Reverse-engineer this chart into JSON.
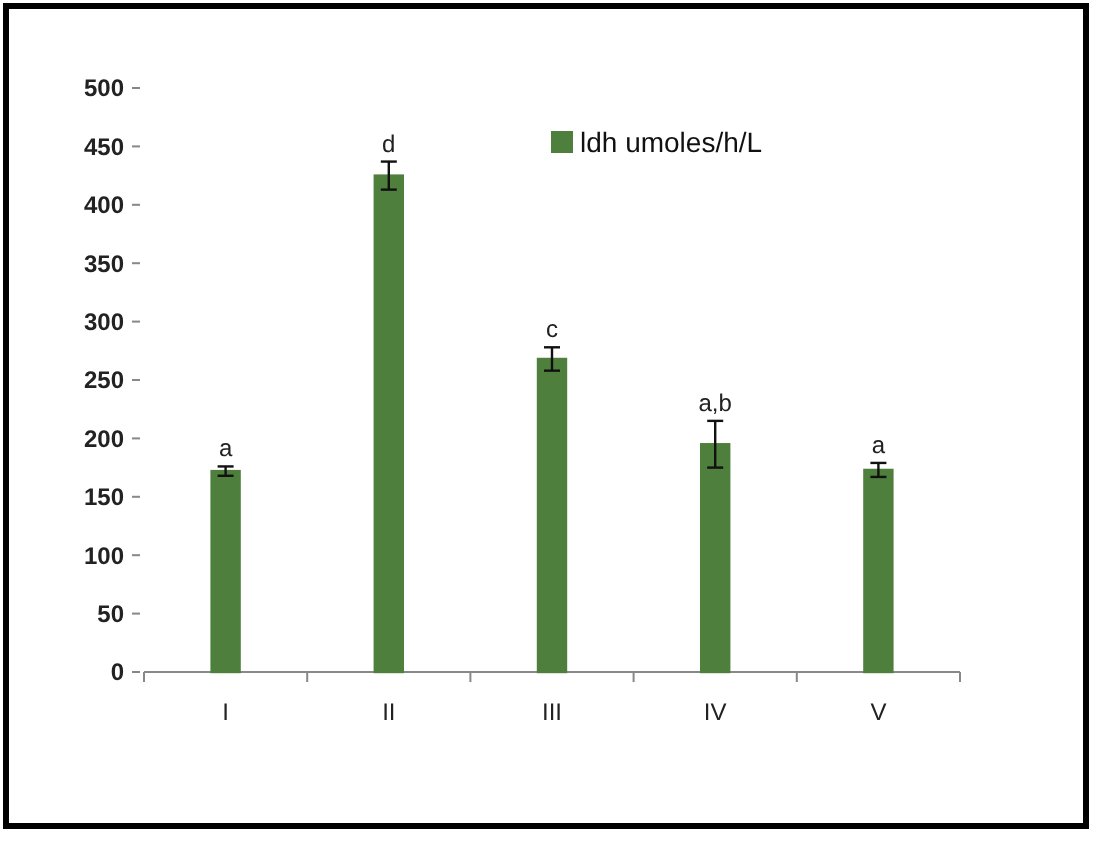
{
  "chart_data": {
    "type": "bar",
    "categories": [
      "I",
      "II",
      "III",
      "IV",
      "V"
    ],
    "series": [
      {
        "name": "ldh umoles/h/L",
        "color": "#4f7f3c",
        "values": [
          172,
          425,
          268,
          195,
          173
        ],
        "errors": [
          4,
          12,
          10,
          20,
          6
        ]
      }
    ],
    "ylim": [
      0,
      500
    ],
    "yticks": [
      0,
      50,
      100,
      150,
      200,
      250,
      300,
      350,
      400,
      450,
      500
    ],
    "grid": false,
    "legend": "top right",
    "annotations": [
      {
        "text": "a",
        "x": "I",
        "y": 176
      },
      {
        "text": "d",
        "x": "II",
        "y": 437
      },
      {
        "text": "c",
        "x": "III",
        "y": 278
      },
      {
        "text": "a,b",
        "x": "IV",
        "y": 215
      },
      {
        "text": "a",
        "x": "V",
        "y": 179
      }
    ]
  }
}
